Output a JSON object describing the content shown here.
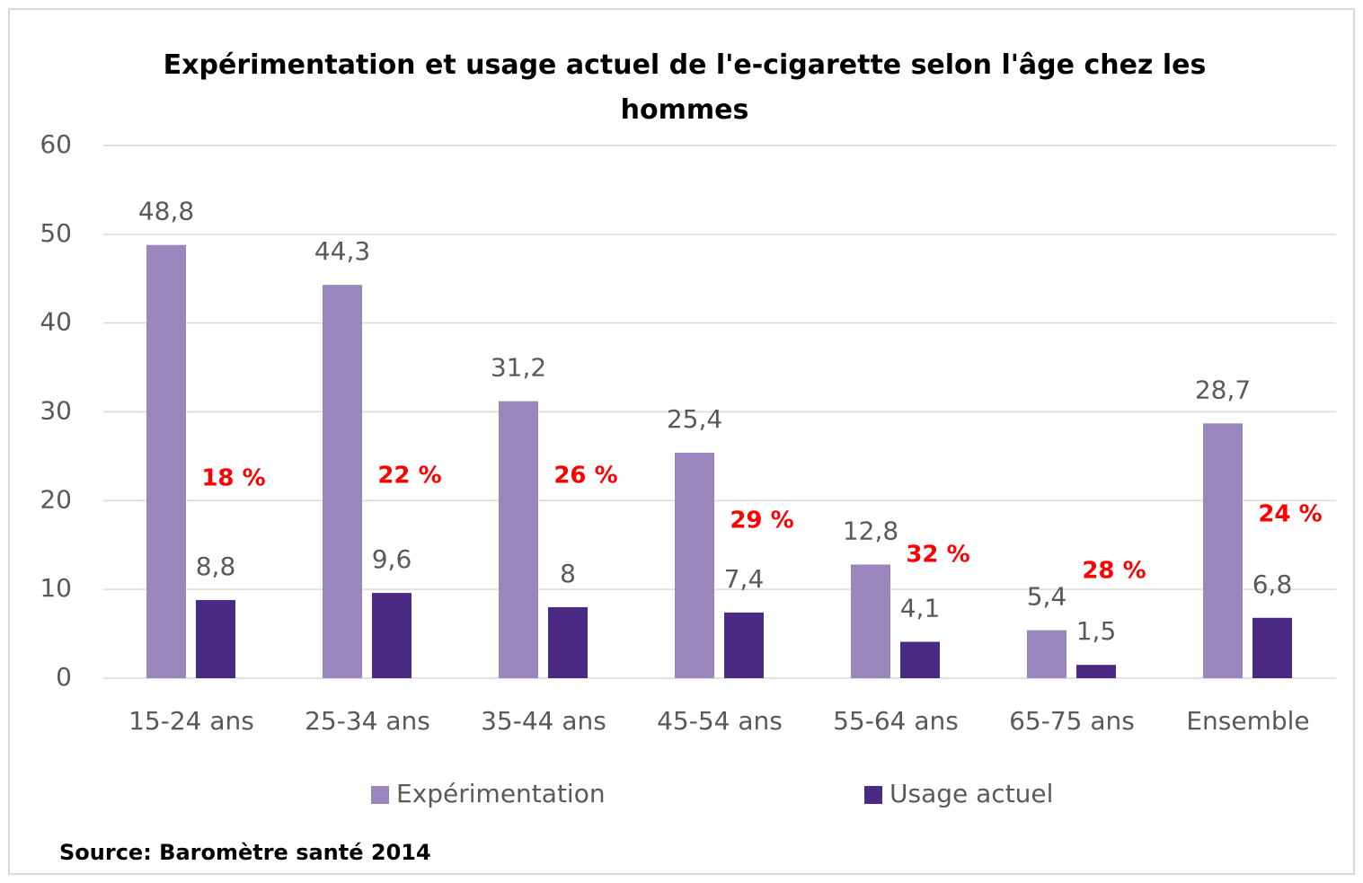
{
  "chart_data": {
    "type": "bar",
    "title": "Expérimentation et usage actuel de l'e-cigarette selon l'âge chez les hommes",
    "categories": [
      "15-24 ans",
      "25-34 ans",
      "35-44 ans",
      "45-54 ans",
      "55-64 ans",
      "65-75 ans",
      "Ensemble"
    ],
    "series": [
      {
        "name": "Expérimentation",
        "color": "#9a86bd",
        "values": [
          48.8,
          44.3,
          31.2,
          25.4,
          12.8,
          5.4,
          28.7
        ],
        "value_labels": [
          "48,8",
          "44,3",
          "31,2",
          "25,4",
          "12,8",
          "5,4",
          "28,7"
        ]
      },
      {
        "name": "Usage actuel",
        "color": "#4a2a82",
        "values": [
          8.8,
          9.6,
          8,
          7.4,
          4.1,
          1.5,
          6.8
        ],
        "value_labels": [
          "8,8",
          "9,6",
          "8",
          "7,4",
          "4,1",
          "1,5",
          "6,8"
        ]
      }
    ],
    "annotations": [
      "18 %",
      "22 %",
      "26 %",
      "29 %",
      "32 %",
      "28 %",
      "24 %"
    ],
    "ylim": [
      0,
      60
    ],
    "yticks": [
      0,
      10,
      20,
      30,
      40,
      50,
      60
    ],
    "grid": true,
    "legend": "bottom",
    "source": "Source: Baromètre santé 2014"
  }
}
